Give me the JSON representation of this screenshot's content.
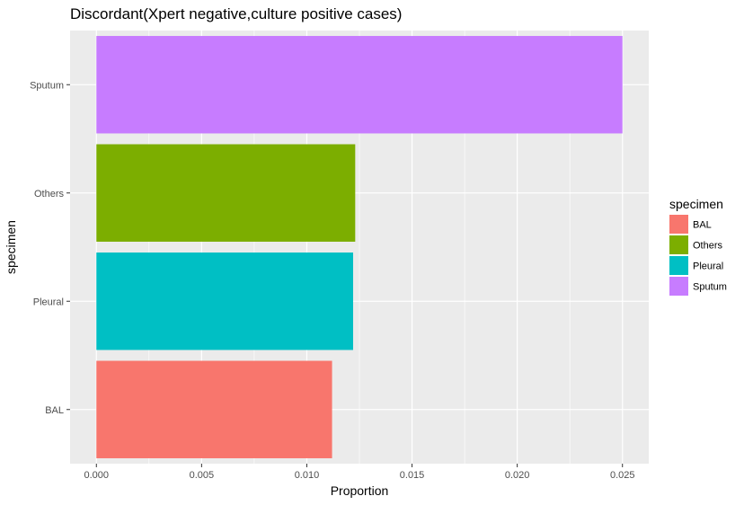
{
  "chart_data": {
    "type": "bar",
    "orientation": "horizontal",
    "title": "Discordant(Xpert negative,culture positive cases)",
    "xlabel": "Proportion",
    "ylabel": "specimen",
    "categories": [
      "BAL",
      "Pleural",
      "Others",
      "Sputum"
    ],
    "values": [
      0.0112,
      0.0122,
      0.0123,
      0.025
    ],
    "xlim": [
      -0.00125,
      0.02625
    ],
    "xticks": [
      0,
      0.005,
      0.01,
      0.015,
      0.02,
      0.025
    ],
    "xtick_labels": [
      "0.000",
      "0.005",
      "0.010",
      "0.015",
      "0.020",
      "0.025"
    ],
    "grid": true,
    "legend": {
      "title": "specimen",
      "position": "right",
      "entries": [
        "BAL",
        "Others",
        "Pleural",
        "Sputum"
      ]
    },
    "colors": {
      "BAL": "#F8766D",
      "Others": "#7CAE00",
      "Pleural": "#00BFC4",
      "Sputum": "#C77CFF"
    },
    "panel_background": "#EBEBEB",
    "gridline_color": "#FFFFFF"
  }
}
